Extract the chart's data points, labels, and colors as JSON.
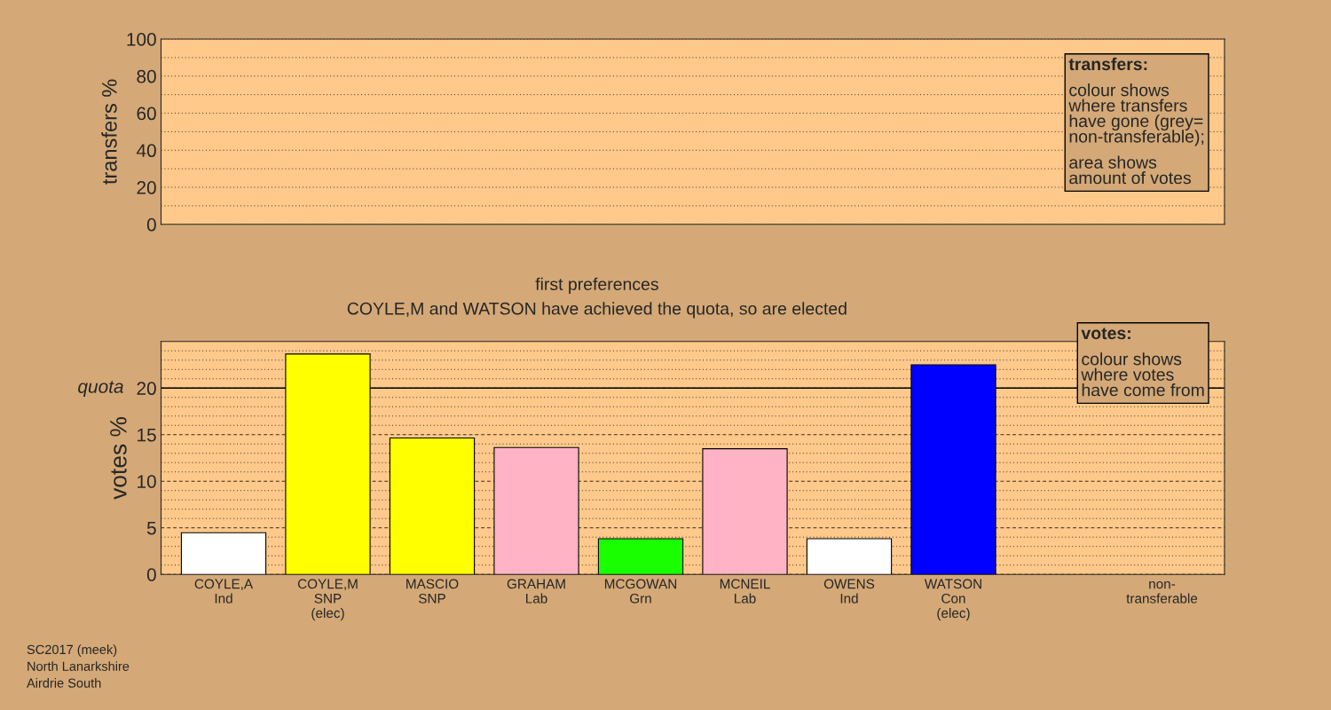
{
  "chart_data": [
    {
      "type": "bar",
      "ylabel": "transfers %",
      "categories": [
        null,
        null,
        null,
        null,
        null,
        null,
        null,
        null,
        null,
        null
      ],
      "values": [
        null,
        null,
        null,
        null,
        null,
        null,
        null,
        null,
        null,
        null
      ],
      "ylim": [
        0,
        100
      ],
      "yticks": [
        0,
        {
          "value": 10,
          "label": null
        },
        20,
        {
          "value": 30,
          "label": null
        },
        40,
        {
          "value": 50,
          "label": null
        },
        60,
        {
          "value": 70,
          "label": null
        },
        80,
        {
          "value": 90,
          "label": null
        },
        100
      ],
      "grid": "y",
      "tick_labels": "y",
      "annotations": [
        "transfers:",
        "colour shows\nwhere transfers\nhave gone (grey=\nnon-transferable);",
        "area shows\namount of votes"
      ]
    },
    {
      "type": "bar",
      "title": "first preferences",
      "subtitle": "COYLE,M and WATSON have achieved the quota, so are elected",
      "ylabel": "votes %",
      "categories": [
        "COYLE,A\nInd",
        "COYLE,M\nSNP\n(elec)",
        "MASCIO\nSNP",
        "GRAHAM\nLab",
        "MCGOWAN\nGrn",
        "MCNEIL\nLab",
        "OWENS\nInd",
        "WATSON\nCon\n(elec)",
        null,
        "non-\ntransferable"
      ],
      "values": [
        4.47,
        23.66,
        14.64,
        13.62,
        3.83,
        13.49,
        3.83,
        22.5,
        null,
        null
      ],
      "colors": [
        "#ffffff",
        "#ffff00",
        "#ffff00",
        "#ffb3c4",
        "#1aff00",
        "#ffb3c4",
        "#ffffff",
        "#0000ff",
        "#ffffff",
        "#ffffff"
      ],
      "ylim": [
        0,
        25
      ],
      "yticks": [
        0,
        {
          "value": 1,
          "label": null
        },
        {
          "value": 2,
          "label": null
        },
        {
          "value": 3,
          "label": null
        },
        {
          "value": 4,
          "label": null
        },
        5,
        {
          "value": 6,
          "label": null
        },
        {
          "value": 7,
          "label": null
        },
        {
          "value": 8,
          "label": null
        },
        {
          "value": 9,
          "label": null
        },
        10,
        {
          "value": 11,
          "label": null
        },
        {
          "value": 12,
          "label": null
        },
        {
          "value": 13,
          "label": null
        },
        {
          "value": 14,
          "label": null
        },
        15,
        {
          "value": 16,
          "label": null
        },
        {
          "value": 17,
          "label": null
        },
        {
          "value": 18,
          "label": null
        },
        {
          "value": 19,
          "label": null
        },
        20,
        {
          "value": 21,
          "label": null
        },
        {
          "value": 22,
          "label": null
        },
        {
          "value": 23,
          "label": null
        },
        {
          "value": 24,
          "label": null
        }
      ],
      "grid": "y",
      "ref_lines": [
        {
          "axis": "y",
          "value": 20,
          "label": "quota",
          "line_style": "solid",
          "color": "#000000"
        }
      ],
      "annotations": [
        "votes:",
        "colour shows\nwhere votes\nhave come from",
        "SC2017 (meek)\nNorth Lanarkshire\nAirdrie South"
      ]
    }
  ]
}
